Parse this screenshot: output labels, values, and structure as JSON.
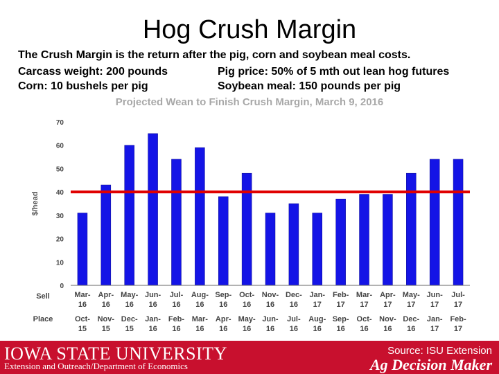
{
  "slide": {
    "title": "Hog Crush Margin",
    "line1": "The Crush Margin is the return after the pig, corn and soybean meal costs.",
    "line2a": "Carcass weight:  200 pounds",
    "line2b": "Pig price:  50% of 5 mth out lean hog futures",
    "line3a": "Corn:  10 bushels per pig",
    "line3b": "Soybean meal:  150 pounds per pig"
  },
  "footer": {
    "logo": "IOWA STATE UNIVERSITY",
    "department": "Extension and Outreach/Department of Economics",
    "source": "Source: ISU Extension",
    "brand": "Ag Decision Maker"
  },
  "chart_data": {
    "type": "bar",
    "title": "Projected Wean to Finish Crush Margin, March 9, 2016",
    "ylabel": "$/head",
    "ylim": [
      0,
      70
    ],
    "yticks": [
      0,
      10,
      20,
      30,
      40,
      50,
      60,
      70
    ],
    "grid": false,
    "bar_color": "#1414e6",
    "reference_line": {
      "value": 40,
      "color": "#e00000"
    },
    "sell_label": "Sell",
    "place_label": "Place",
    "categories": [
      {
        "sell": [
          "Mar-",
          "16"
        ],
        "place": [
          "Oct-",
          "15"
        ]
      },
      {
        "sell": [
          "Apr-",
          "16"
        ],
        "place": [
          "Nov-",
          "15"
        ]
      },
      {
        "sell": [
          "May-",
          "16"
        ],
        "place": [
          "Dec-",
          "15"
        ]
      },
      {
        "sell": [
          "Jun-",
          "16"
        ],
        "place": [
          "Jan-",
          "16"
        ]
      },
      {
        "sell": [
          "Jul-",
          "16"
        ],
        "place": [
          "Feb-",
          "16"
        ]
      },
      {
        "sell": [
          "Aug-",
          "16"
        ],
        "place": [
          "Mar-",
          "16"
        ]
      },
      {
        "sell": [
          "Sep-",
          "16"
        ],
        "place": [
          "Apr-",
          "16"
        ]
      },
      {
        "sell": [
          "Oct-",
          "16"
        ],
        "place": [
          "May-",
          "16"
        ]
      },
      {
        "sell": [
          "Nov-",
          "16"
        ],
        "place": [
          "Jun-",
          "16"
        ]
      },
      {
        "sell": [
          "Dec-",
          "16"
        ],
        "place": [
          "Jul-",
          "16"
        ]
      },
      {
        "sell": [
          "Jan-",
          "17"
        ],
        "place": [
          "Aug-",
          "16"
        ]
      },
      {
        "sell": [
          "Feb-",
          "17"
        ],
        "place": [
          "Sep-",
          "16"
        ]
      },
      {
        "sell": [
          "Mar-",
          "17"
        ],
        "place": [
          "Oct-",
          "16"
        ]
      },
      {
        "sell": [
          "Apr-",
          "17"
        ],
        "place": [
          "Nov-",
          "16"
        ]
      },
      {
        "sell": [
          "May-",
          "17"
        ],
        "place": [
          "Dec-",
          "16"
        ]
      },
      {
        "sell": [
          "Jun-",
          "17"
        ],
        "place": [
          "Jan-",
          "17"
        ]
      },
      {
        "sell": [
          "Jul-",
          "17"
        ],
        "place": [
          "Feb-",
          "17"
        ]
      }
    ],
    "values": [
      31,
      43,
      60,
      65,
      54,
      59,
      38,
      48,
      31,
      35,
      31,
      37,
      39,
      39,
      48,
      54,
      54
    ]
  }
}
